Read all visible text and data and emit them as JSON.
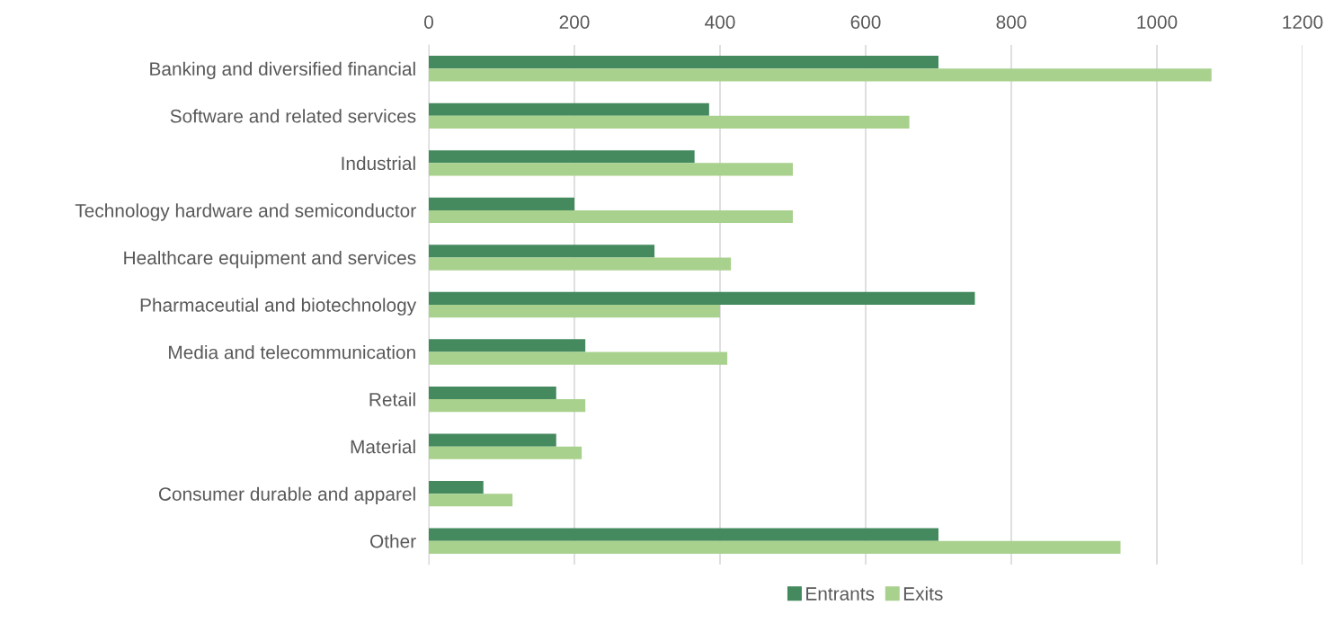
{
  "chart_data": {
    "type": "bar",
    "orientation": "horizontal",
    "categories": [
      "Banking and diversified financial",
      "Software and related services",
      "Industrial",
      "Technology hardware and semiconductor",
      "Healthcare equipment and services",
      "Pharmaceutial and biotechnology",
      "Media and telecommunication",
      "Retail",
      "Material",
      "Consumer durable and apparel",
      "Other"
    ],
    "series": [
      {
        "name": "Entrants",
        "color": "#448a5e",
        "values": [
          700,
          385,
          365,
          200,
          310,
          750,
          215,
          175,
          175,
          75,
          700
        ]
      },
      {
        "name": "Exits",
        "color": "#a9d18e",
        "values": [
          1075,
          660,
          500,
          500,
          415,
          400,
          410,
          215,
          210,
          115,
          950
        ]
      }
    ],
    "xlim": [
      0,
      1200
    ],
    "xticks": [
      0,
      200,
      400,
      600,
      800,
      1000,
      1200
    ],
    "grid": "x",
    "legend": "bottom"
  }
}
